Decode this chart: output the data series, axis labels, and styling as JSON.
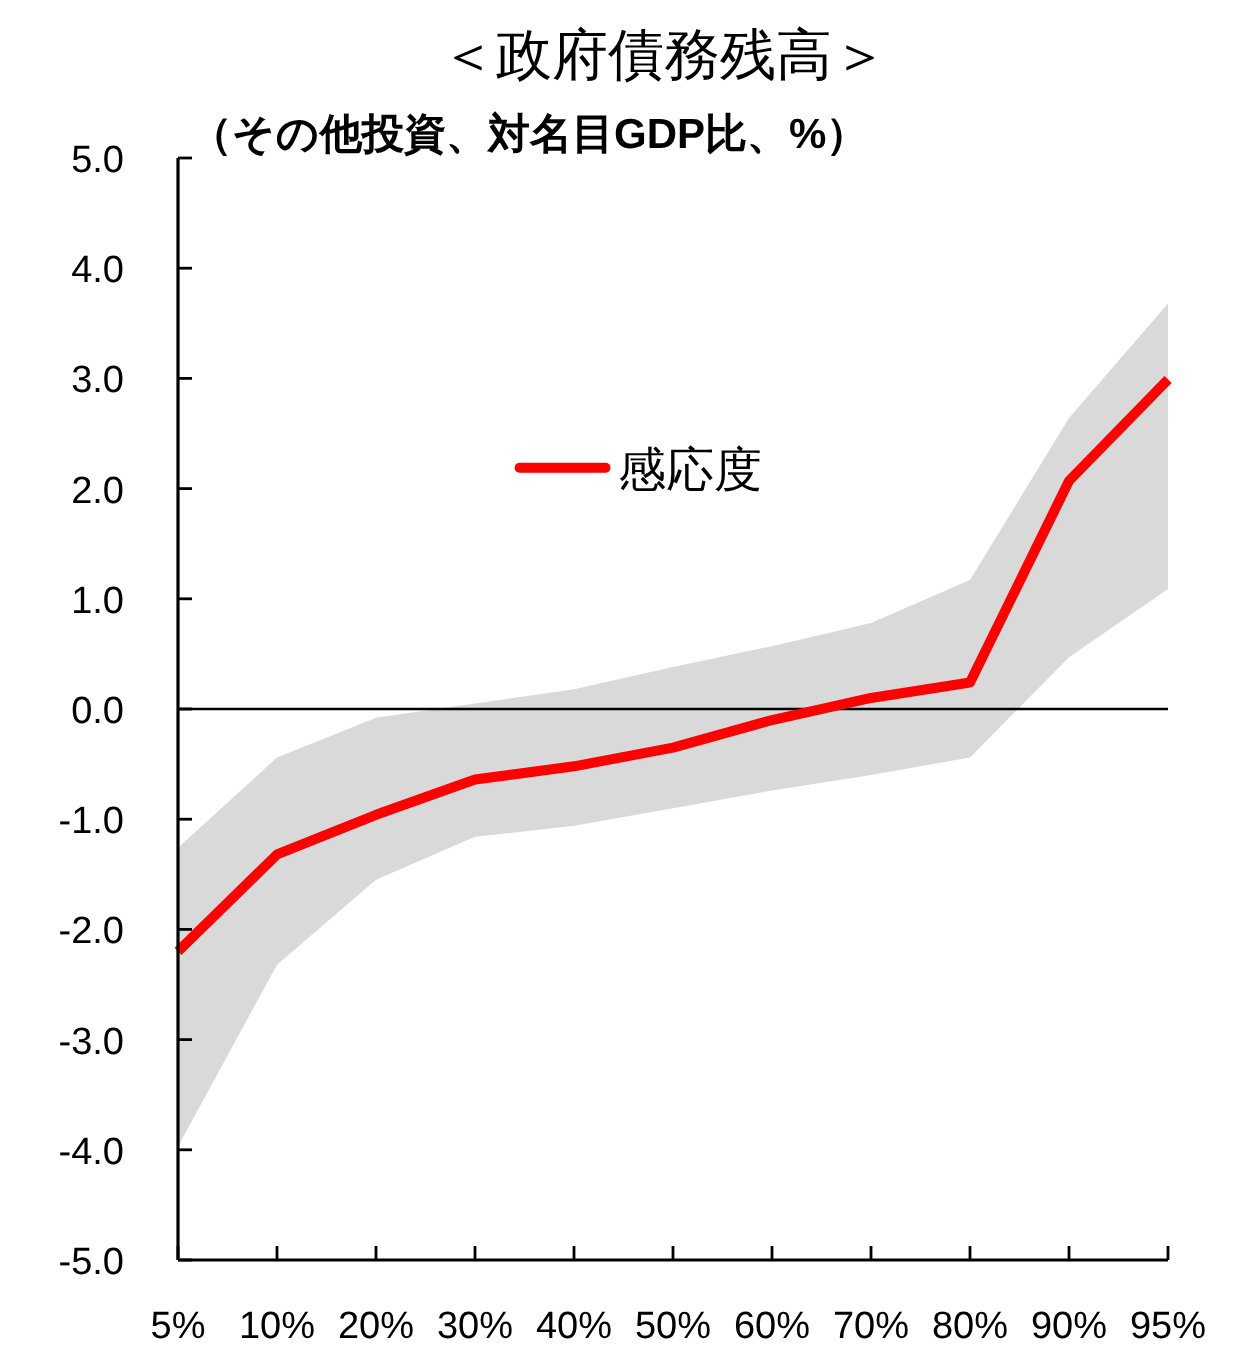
{
  "chart_data": {
    "type": "line",
    "title": "＜政府債務残高＞",
    "ylabel": "（その他投資、対名目GDP比、%）",
    "categories": [
      "5%",
      "10%",
      "20%",
      "30%",
      "40%",
      "50%",
      "60%",
      "70%",
      "80%",
      "90%",
      "95%"
    ],
    "series": [
      {
        "name": "感応度",
        "color": "#ff0000",
        "values": [
          -2.2,
          -1.32,
          -0.96,
          -0.64,
          -0.52,
          -0.35,
          -0.1,
          0.1,
          0.24,
          2.07,
          2.99
        ],
        "lower": [
          -3.97,
          -2.32,
          -1.55,
          -1.16,
          -1.06,
          -0.9,
          -0.74,
          -0.6,
          -0.44,
          0.47,
          1.09
        ],
        "upper": [
          -1.26,
          -0.44,
          -0.08,
          0.05,
          0.18,
          0.38,
          0.57,
          0.78,
          1.17,
          2.64,
          3.68
        ]
      }
    ],
    "ylim": [
      -5,
      5
    ],
    "yticks": [
      {
        "value": 5,
        "label": "5.0"
      },
      {
        "value": 4,
        "label": "4.0"
      },
      {
        "value": 3,
        "label": "3.0"
      },
      {
        "value": 2,
        "label": "2.0"
      },
      {
        "value": 1,
        "label": "1.0"
      },
      {
        "value": 0,
        "label": "0.0"
      },
      {
        "value": -1,
        "label": "-1.0"
      },
      {
        "value": -2,
        "label": "-2.0"
      },
      {
        "value": -3,
        "label": "-3.0"
      },
      {
        "value": -4,
        "label": "-4.0"
      },
      {
        "value": -5,
        "label": "-5.0"
      }
    ],
    "ref_lines": [
      {
        "axis": "y",
        "value": 0,
        "color": "#000000"
      }
    ],
    "legend": "top",
    "line_style": "solid"
  }
}
